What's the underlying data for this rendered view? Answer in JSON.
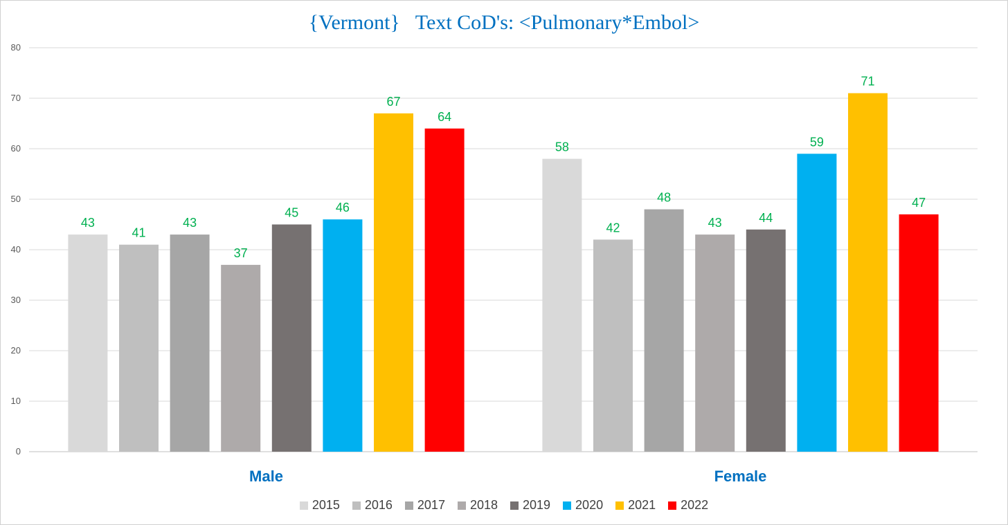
{
  "chart_data": {
    "type": "bar",
    "title": "{Vermont}   Text CoD's: <Pulmonary*Embol>",
    "categories": [
      "Male",
      "Female"
    ],
    "ylim": [
      0,
      80
    ],
    "yticks": [
      "0",
      "10",
      "20",
      "30",
      "40",
      "50",
      "60",
      "70",
      "80"
    ],
    "grid": true,
    "legend_position": "bottom",
    "series": [
      {
        "name": "2015",
        "color": "#d9d9d9",
        "values": [
          43,
          58
        ]
      },
      {
        "name": "2016",
        "color": "#bfbfbf",
        "values": [
          41,
          42
        ]
      },
      {
        "name": "2017",
        "color": "#a6a6a6",
        "values": [
          43,
          48
        ]
      },
      {
        "name": "2018",
        "color": "#aeaaaa",
        "values": [
          37,
          43
        ]
      },
      {
        "name": "2019",
        "color": "#767171",
        "values": [
          45,
          44
        ]
      },
      {
        "name": "2020",
        "color": "#00b0f0",
        "values": [
          46,
          59
        ]
      },
      {
        "name": "2021",
        "color": "#ffc000",
        "values": [
          67,
          71
        ]
      },
      {
        "name": "2022",
        "color": "#ff0000",
        "values": [
          64,
          47
        ]
      }
    ],
    "data_label_color": "#00b050",
    "category_label_color": "#0070c0"
  }
}
